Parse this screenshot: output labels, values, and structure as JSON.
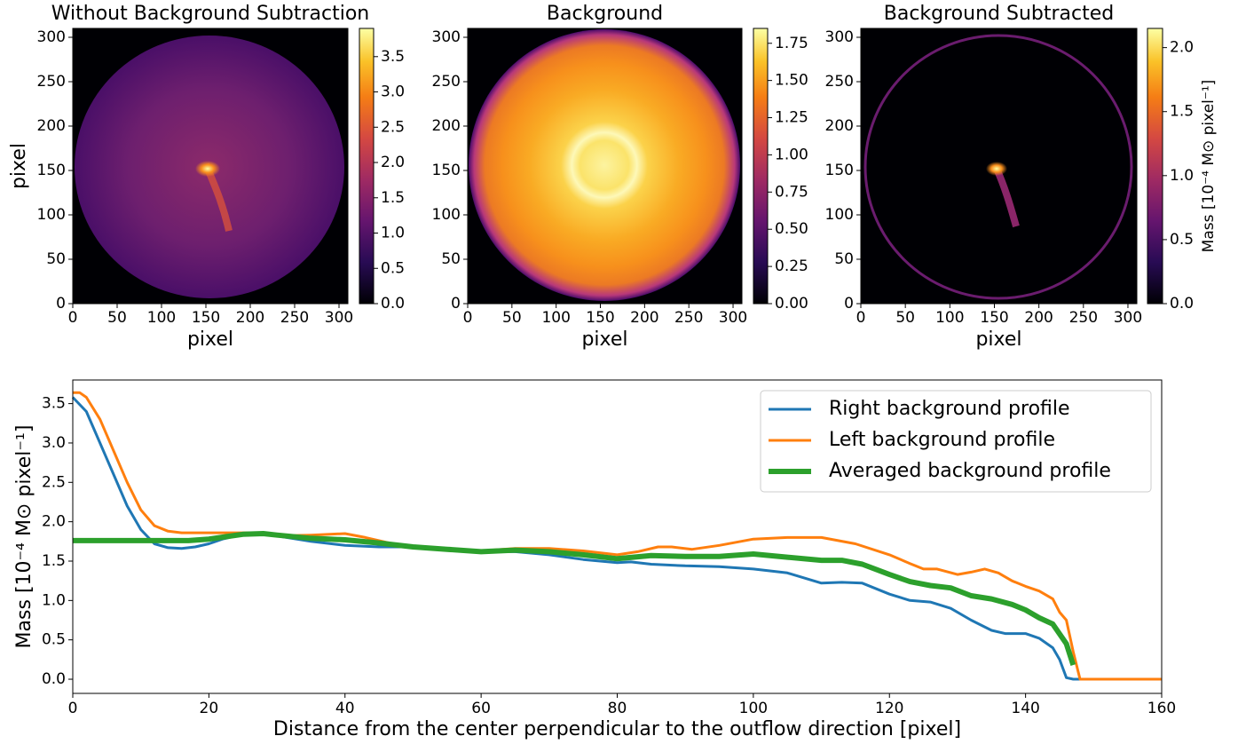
{
  "chart_data": [
    {
      "type": "heatmap",
      "title": "Without Background Subtraction",
      "xlabel": "pixel",
      "ylabel": "pixel",
      "xlim": [
        0,
        310
      ],
      "ylim": [
        0,
        310
      ],
      "xticks": [
        0,
        50,
        100,
        150,
        200,
        250,
        300
      ],
      "yticks": [
        0,
        50,
        100,
        150,
        200,
        250,
        300
      ],
      "clim": [
        0,
        3.9
      ],
      "cticks": [
        {
          "value": 0,
          "label": "0.0"
        },
        0.5,
        {
          "value": 1,
          "label": "1.0"
        },
        1.5,
        {
          "value": 2,
          "label": "2.0"
        },
        2.5,
        {
          "value": 3,
          "label": "3.0"
        },
        3.5
      ],
      "colormap": "inferno"
    },
    {
      "type": "heatmap",
      "title": "Background",
      "xlabel": "pixel",
      "xlim": [
        0,
        310
      ],
      "ylim": [
        0,
        310
      ],
      "xticks": [
        0,
        50,
        100,
        150,
        200,
        250,
        300
      ],
      "yticks": [
        0,
        50,
        100,
        150,
        200,
        250,
        300
      ],
      "clim": [
        0,
        1.85
      ],
      "cticks": [
        {
          "value": 0,
          "label": "0.00"
        },
        0.25,
        {
          "value": 0.5,
          "label": "0.50"
        },
        0.75,
        {
          "value": 1,
          "label": "1.00"
        },
        1.25,
        {
          "value": 1.5,
          "label": "1.50"
        },
        1.75
      ],
      "colormap": "inferno"
    },
    {
      "type": "heatmap",
      "title": "Background Subtracted",
      "xlabel": "pixel",
      "clabel": "Mass [10⁻⁴ M⊙ pixel⁻¹]",
      "xlim": [
        0,
        310
      ],
      "ylim": [
        0,
        310
      ],
      "xticks": [
        0,
        50,
        100,
        150,
        200,
        250,
        300
      ],
      "yticks": [
        0,
        50,
        100,
        150,
        200,
        250,
        300
      ],
      "clim": [
        0,
        2.15
      ],
      "cticks": [
        {
          "value": 0,
          "label": "0.0"
        },
        0.5,
        {
          "value": 1,
          "label": "1.0"
        },
        1.5,
        {
          "value": 2,
          "label": "2.0"
        }
      ],
      "colormap": "inferno"
    },
    {
      "type": "line",
      "xlabel": "Distance from the center perpendicular to the outflow direction [pixel]",
      "ylabel": "Mass [10⁻⁴ M⊙ pixel⁻¹]",
      "xlim": [
        0,
        160
      ],
      "ylim": [
        -0.18,
        3.8
      ],
      "xticks": [
        0,
        20,
        40,
        60,
        80,
        100,
        120,
        140,
        160
      ],
      "yticks": [
        {
          "value": 0,
          "label": "0.0"
        },
        0.5,
        {
          "value": 1,
          "label": "1.0"
        },
        1.5,
        {
          "value": 2,
          "label": "2.0"
        },
        2.5,
        {
          "value": 3,
          "label": "3.0"
        },
        3.5
      ],
      "legend": "upper right",
      "series": [
        {
          "name": "Right background profile",
          "color": "#1f77b4",
          "width": 3,
          "x": [
            0,
            2,
            4,
            6,
            8,
            10,
            12,
            14,
            16,
            18,
            20,
            22,
            24,
            26,
            28,
            30,
            35,
            40,
            45,
            50,
            55,
            60,
            65,
            70,
            75,
            80,
            82,
            85,
            90,
            95,
            100,
            105,
            110,
            113,
            116,
            120,
            123,
            126,
            129,
            132,
            135,
            137,
            140,
            142,
            144,
            145,
            146,
            147,
            160
          ],
          "values": [
            3.58,
            3.4,
            3.0,
            2.6,
            2.2,
            1.9,
            1.72,
            1.67,
            1.66,
            1.68,
            1.72,
            1.78,
            1.82,
            1.85,
            1.85,
            1.82,
            1.75,
            1.7,
            1.68,
            1.68,
            1.65,
            1.62,
            1.62,
            1.58,
            1.52,
            1.48,
            1.49,
            1.46,
            1.44,
            1.43,
            1.4,
            1.35,
            1.22,
            1.23,
            1.22,
            1.08,
            1.0,
            0.98,
            0.9,
            0.75,
            0.62,
            0.58,
            0.58,
            0.52,
            0.4,
            0.25,
            0.02,
            0,
            0
          ]
        },
        {
          "name": "Left background profile",
          "color": "#ff7f0e",
          "width": 3,
          "x": [
            0,
            1,
            2,
            4,
            6,
            8,
            10,
            12,
            14,
            16,
            20,
            25,
            28,
            30,
            35,
            40,
            43,
            47,
            50,
            55,
            60,
            65,
            70,
            75,
            80,
            83,
            86,
            88,
            91,
            95,
            100,
            105,
            110,
            115,
            120,
            123,
            125,
            127,
            130,
            132,
            134,
            136,
            138,
            140,
            142,
            144,
            145,
            146,
            147,
            148,
            160
          ],
          "values": [
            3.64,
            3.64,
            3.58,
            3.3,
            2.9,
            2.5,
            2.15,
            1.95,
            1.88,
            1.86,
            1.86,
            1.86,
            1.86,
            1.82,
            1.83,
            1.85,
            1.8,
            1.72,
            1.68,
            1.66,
            1.63,
            1.66,
            1.66,
            1.63,
            1.58,
            1.62,
            1.68,
            1.68,
            1.65,
            1.7,
            1.78,
            1.8,
            1.8,
            1.72,
            1.58,
            1.47,
            1.4,
            1.4,
            1.33,
            1.36,
            1.4,
            1.35,
            1.25,
            1.18,
            1.12,
            1.02,
            0.85,
            0.75,
            0.35,
            0,
            0
          ]
        },
        {
          "name": "Averaged background profile",
          "color": "#2ca02c",
          "width": 6,
          "x": [
            0,
            17,
            20,
            25,
            28,
            30,
            35,
            40,
            45,
            50,
            55,
            60,
            65,
            70,
            75,
            80,
            85,
            90,
            95,
            100,
            105,
            110,
            113,
            116,
            120,
            123,
            126,
            129,
            132,
            135,
            138,
            140,
            142,
            144,
            146,
            147
          ],
          "values": [
            1.76,
            1.76,
            1.78,
            1.84,
            1.85,
            1.83,
            1.79,
            1.77,
            1.73,
            1.68,
            1.65,
            1.62,
            1.64,
            1.62,
            1.58,
            1.53,
            1.57,
            1.56,
            1.56,
            1.59,
            1.55,
            1.51,
            1.51,
            1.46,
            1.33,
            1.24,
            1.19,
            1.16,
            1.06,
            1.02,
            0.95,
            0.88,
            0.78,
            0.7,
            0.45,
            0.18
          ]
        }
      ]
    }
  ]
}
